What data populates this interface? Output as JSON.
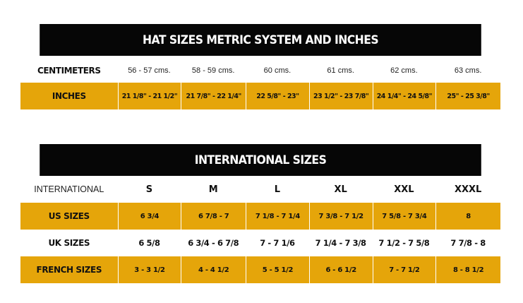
{
  "colors": {
    "header_bg": "#060606",
    "accent": "#e5a50a",
    "text": "#111111"
  },
  "metric_table": {
    "title": "HAT SIZES METRIC SYSTEM AND INCHES",
    "centimeters": {
      "label": "CENTIMETERS",
      "values": [
        "56 - 57 cms.",
        "58 - 59 cms.",
        "60  cms.",
        "61 cms.",
        "62 cms.",
        "63 cms."
      ]
    },
    "inches": {
      "label": "INCHES",
      "values": [
        "21 1/8\" - 21 1/2\"",
        "21 7/8\" - 22 1/4\"",
        "22 5/8\" - 23\"",
        "23 1/2\" - 23 7/8\"",
        "24 1/4\" - 24 5/8\"",
        "25\" - 25 3/8\""
      ]
    }
  },
  "international_table": {
    "title": "INTERNATIONAL SIZES",
    "international": {
      "label": "INTERNATIONAL",
      "values": [
        "S",
        "M",
        "L",
        "XL",
        "XXL",
        "XXXL"
      ]
    },
    "us": {
      "label": "US SIZES",
      "values": [
        "6 3/4",
        "6 7/8 - 7",
        "7 1/8 - 7 1/4",
        "7 3/8 - 7 1/2",
        "7 5/8 - 7 3/4",
        "8"
      ]
    },
    "uk": {
      "label": "UK SIZES",
      "values": [
        "6 5/8",
        "6 3/4 - 6 7/8",
        "7 - 7 1/6",
        "7 1/4 - 7 3/8",
        "7 1/2 - 7 5/8",
        "7 7/8 - 8"
      ]
    },
    "french": {
      "label": "FRENCH SIZES",
      "values": [
        "3 - 3 1/2",
        "4 - 4 1/2",
        "5 - 5 1/2",
        "6 - 6 1/2",
        "7 - 7 1/2",
        "8 - 8 1/2"
      ]
    }
  }
}
